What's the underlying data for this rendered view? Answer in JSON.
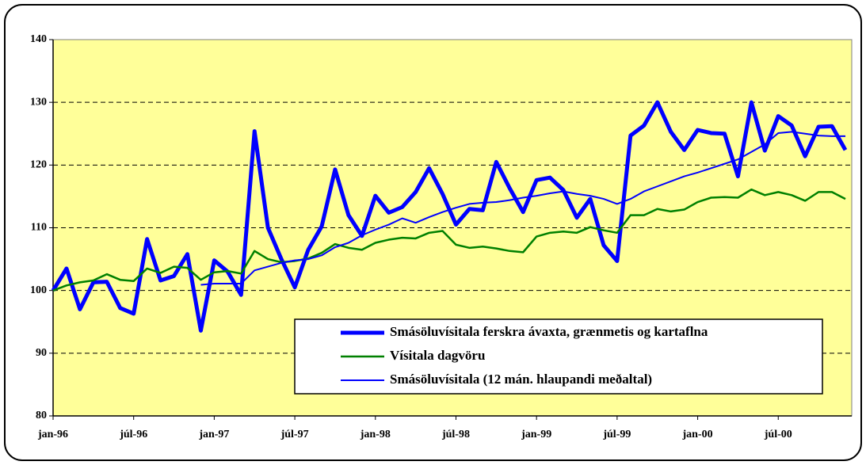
{
  "chart_data": {
    "type": "line",
    "categories": [
      "jan-96",
      null,
      null,
      null,
      null,
      null,
      "júl-96",
      null,
      null,
      null,
      null,
      null,
      "jan-97",
      null,
      null,
      null,
      null,
      null,
      "júl-97",
      null,
      null,
      null,
      null,
      null,
      "jan-98",
      null,
      null,
      null,
      null,
      null,
      "júl-98",
      null,
      null,
      null,
      null,
      null,
      "jan-99",
      null,
      null,
      null,
      null,
      null,
      "júl-99",
      null,
      null,
      null,
      null,
      null,
      "jan-00",
      null,
      null,
      null,
      null,
      null,
      "júl-00",
      null,
      null,
      null,
      null,
      null
    ],
    "series": [
      {
        "name": "Smásöluvísitala ferskra ávaxta, grænmetis og kartaflna",
        "color": "#0000ff",
        "width": 5,
        "values": [
          100,
          103.5,
          97,
          101.3,
          101.4,
          97.2,
          96.3,
          108.2,
          101.6,
          102.3,
          105.8,
          93.6,
          104.8,
          103,
          99.3,
          125.4,
          110,
          105,
          100.5,
          106.5,
          110.2,
          119.3,
          112,
          108.7,
          115.1,
          112.4,
          113.3,
          115.7,
          119.5,
          115.4,
          110.5,
          113,
          112.8,
          120.5,
          116.3,
          112.5,
          117.6,
          118,
          116,
          111.6,
          114.6,
          107.2,
          104.7,
          124.7,
          126.3,
          130,
          125.3,
          122.4,
          125.6,
          125.1,
          125,
          118.2,
          130,
          122.3,
          127.8,
          126.3,
          121.4,
          126.1,
          126.2,
          122.4
        ]
      },
      {
        "name": "Vísitala dagvöru",
        "color": "#008000",
        "width": 2.5,
        "values": [
          100,
          100.8,
          101.3,
          101.6,
          102.6,
          101.7,
          101.5,
          103.5,
          102.8,
          103.8,
          103.6,
          101.7,
          102.9,
          103.1,
          102.7,
          106.3,
          105,
          104.5,
          104.7,
          105.1,
          106,
          107.4,
          106.8,
          106.5,
          107.6,
          108.1,
          108.4,
          108.3,
          109.2,
          109.5,
          107.3,
          106.8,
          107,
          106.7,
          106.3,
          106.1,
          108.6,
          109.2,
          109.4,
          109.2,
          110.1,
          109.6,
          109.2,
          112,
          112,
          113,
          112.6,
          112.9,
          114.1,
          114.8,
          114.9,
          114.8,
          116.1,
          115.2,
          115.7,
          115.2,
          114.3,
          115.7,
          115.7,
          114.6
        ]
      },
      {
        "name": "Smásöluvísitala (12 mán. hlaupandi meðaltal)",
        "color": "#0000ff",
        "width": 2,
        "values": [
          null,
          null,
          null,
          null,
          null,
          null,
          null,
          null,
          null,
          null,
          null,
          100.9,
          101.1,
          101.1,
          101.1,
          103.2,
          103.8,
          104.4,
          104.8,
          105,
          105.6,
          106.9,
          107.6,
          108.8,
          109.7,
          110.5,
          111.5,
          110.8,
          111.7,
          112.5,
          113.2,
          113.8,
          114,
          114.1,
          114.4,
          114.8,
          115.1,
          115.5,
          115.8,
          115.4,
          115.1,
          114.6,
          113.8,
          114.6,
          115.8,
          116.6,
          117.4,
          118.2,
          118.8,
          119.5,
          120.2,
          120.9,
          122.1,
          123.3,
          125.1,
          125.3,
          125,
          124.7,
          124.6,
          124.6
        ]
      }
    ],
    "ylim": [
      80,
      140
    ],
    "yticks": [
      80,
      90,
      100,
      110,
      120,
      130,
      140
    ],
    "grid": true,
    "plot_background": "#ffff99"
  }
}
